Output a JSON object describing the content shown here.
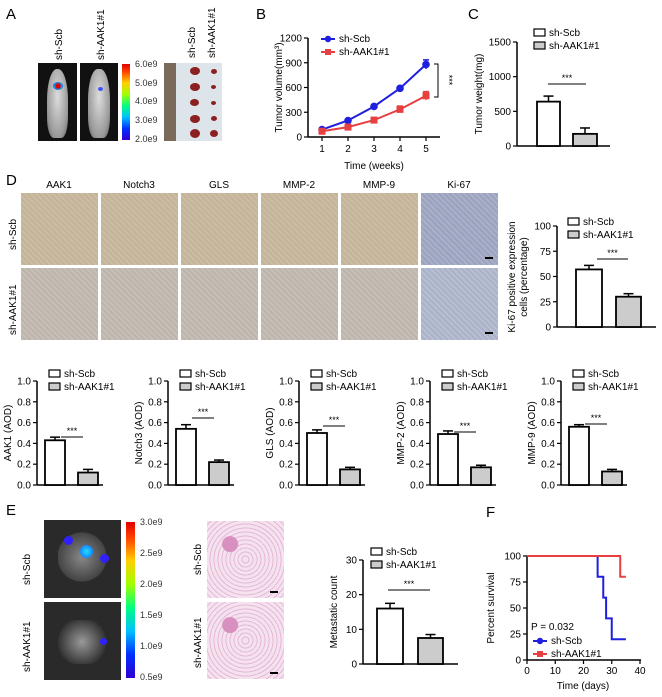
{
  "panels": {
    "a": "A",
    "b": "B",
    "c": "C",
    "d": "D",
    "e": "E",
    "f": "F"
  },
  "groups": {
    "scb": "sh-Scb",
    "aak1": "sh-AAK1#1"
  },
  "panel_a": {
    "colorbar_ticks": [
      "6.0e9",
      "5.0e9",
      "4.0e9",
      "3.0e9",
      "2.0e9"
    ]
  },
  "panel_d": {
    "stains": [
      "AAK1",
      "Notch3",
      "GLS",
      "MMP-2",
      "MMP-9",
      "Ki-67"
    ]
  },
  "panel_e": {
    "colorbar_ticks": [
      "3.0e9",
      "2.5e9",
      "2.0e9",
      "1.5e9",
      "1.0e9",
      "0.5e9"
    ]
  },
  "colors": {
    "scb_line": "#1f1fe0",
    "aak1_line": "#e84040",
    "bar_fill_scb": "#ffffff",
    "bar_fill_aak1": "#cccccc"
  },
  "chart_data": [
    {
      "type": "line",
      "panel": "B",
      "xlabel": "Time (weeks)",
      "ylabel": "Tumor volume(mm³)",
      "x": [
        1,
        2,
        3,
        4,
        5
      ],
      "xticks": [
        "1",
        "2",
        "3",
        "4",
        "5"
      ],
      "ylim": [
        0,
        1200
      ],
      "yticks": [
        "0",
        "300",
        "600",
        "900",
        "1200"
      ],
      "legend": "top-left",
      "significance": "***",
      "series": [
        {
          "name": "sh-Scb",
          "values": [
            90,
            200,
            370,
            590,
            880
          ],
          "errors": [
            15,
            15,
            20,
            20,
            55
          ]
        },
        {
          "name": "sh-AAK1#1",
          "values": [
            70,
            120,
            205,
            335,
            500
          ],
          "errors": [
            10,
            15,
            30,
            40,
            50
          ]
        }
      ]
    },
    {
      "type": "bar",
      "panel": "C",
      "ylabel": "Tumor weight(mg)",
      "ylim": [
        0,
        1500
      ],
      "yticks": [
        "0",
        "500",
        "1000",
        "1500"
      ],
      "significance": "***",
      "legend": "top",
      "series": [
        {
          "name": "sh-Scb",
          "value": 640,
          "error": 80
        },
        {
          "name": "sh-AAK1#1",
          "value": 175,
          "error": 85
        }
      ]
    },
    {
      "type": "bar",
      "panel": "D",
      "ylabel": "Ki-67 positive expression cells (percentage)",
      "ylim": [
        0,
        100
      ],
      "yticks": [
        "0",
        "25",
        "50",
        "75",
        "100"
      ],
      "significance": "***",
      "legend": "top",
      "series": [
        {
          "name": "sh-Scb",
          "value": 57,
          "error": 4
        },
        {
          "name": "sh-AAK1#1",
          "value": 30,
          "error": 3
        }
      ]
    },
    {
      "type": "bar",
      "panel": "D",
      "ylabel": "AAK1 (AOD)",
      "ylim": [
        0,
        1
      ],
      "yticks": [
        "0.0",
        "0.2",
        "0.4",
        "0.6",
        "0.8",
        "1.0"
      ],
      "significance": "***",
      "legend": "top",
      "series": [
        {
          "name": "sh-Scb",
          "value": 0.43,
          "error": 0.03
        },
        {
          "name": "sh-AAK1#1",
          "value": 0.12,
          "error": 0.03
        }
      ]
    },
    {
      "type": "bar",
      "panel": "D",
      "ylabel": "Notch3 (AOD)",
      "ylim": [
        0,
        1
      ],
      "yticks": [
        "0.0",
        "0.2",
        "0.4",
        "0.6",
        "0.8",
        "1.0"
      ],
      "significance": "***",
      "legend": "top",
      "series": [
        {
          "name": "sh-Scb",
          "value": 0.54,
          "error": 0.04
        },
        {
          "name": "sh-AAK1#1",
          "value": 0.22,
          "error": 0.02
        }
      ]
    },
    {
      "type": "bar",
      "panel": "D",
      "ylabel": "GLS (AOD)",
      "ylim": [
        0,
        1
      ],
      "yticks": [
        "0.0",
        "0.2",
        "0.4",
        "0.6",
        "0.8",
        "1.0"
      ],
      "significance": "***",
      "legend": "top",
      "series": [
        {
          "name": "sh-Scb",
          "value": 0.5,
          "error": 0.03
        },
        {
          "name": "sh-AAK1#1",
          "value": 0.15,
          "error": 0.02
        }
      ]
    },
    {
      "type": "bar",
      "panel": "D",
      "ylabel": "MMP-2 (AOD)",
      "ylim": [
        0,
        1
      ],
      "yticks": [
        "0.0",
        "0.2",
        "0.4",
        "0.6",
        "0.8",
        "1.0"
      ],
      "significance": "***",
      "legend": "top",
      "series": [
        {
          "name": "sh-Scb",
          "value": 0.49,
          "error": 0.03
        },
        {
          "name": "sh-AAK1#1",
          "value": 0.17,
          "error": 0.02
        }
      ]
    },
    {
      "type": "bar",
      "panel": "D",
      "ylabel": "MMP-9 (AOD)",
      "ylim": [
        0,
        1
      ],
      "yticks": [
        "0.0",
        "0.2",
        "0.4",
        "0.6",
        "0.8",
        "1.0"
      ],
      "significance": "***",
      "legend": "top",
      "series": [
        {
          "name": "sh-Scb",
          "value": 0.56,
          "error": 0.02
        },
        {
          "name": "sh-AAK1#1",
          "value": 0.13,
          "error": 0.02
        }
      ]
    },
    {
      "type": "bar",
      "panel": "E",
      "ylabel": "Metastatic count",
      "ylim": [
        0,
        30
      ],
      "yticks": [
        "0",
        "10",
        "20",
        "30"
      ],
      "significance": "***",
      "legend": "top",
      "series": [
        {
          "name": "sh-Scb",
          "value": 16,
          "error": 1.5
        },
        {
          "name": "sh-AAK1#1",
          "value": 7.5,
          "error": 1
        }
      ]
    },
    {
      "type": "line",
      "subtype": "survival",
      "panel": "F",
      "xlabel": "Time (days)",
      "ylabel": "Percent survival",
      "xlim": [
        0,
        40
      ],
      "xticks": [
        "0",
        "10",
        "20",
        "30",
        "40"
      ],
      "ylim": [
        0,
        100
      ],
      "yticks": [
        "0",
        "25",
        "50",
        "75",
        "100"
      ],
      "annotation": "P = 0.032",
      "legend": "bottom-left",
      "series": [
        {
          "name": "sh-Scb",
          "x": [
            0,
            25,
            25,
            27,
            27,
            28,
            28,
            30,
            30,
            35
          ],
          "y": [
            100,
            100,
            80,
            80,
            60,
            60,
            40,
            40,
            20,
            20
          ]
        },
        {
          "name": "sh-AAK1#1",
          "x": [
            0,
            33,
            33,
            35
          ],
          "y": [
            100,
            100,
            80,
            80
          ]
        }
      ]
    }
  ]
}
